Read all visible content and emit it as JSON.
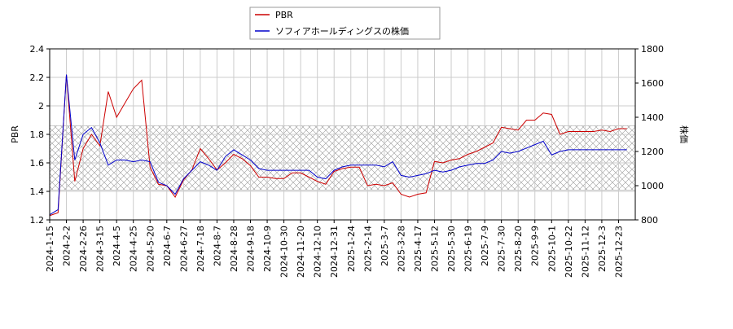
{
  "chart_data": {
    "type": "line",
    "categories": [
      "2024-1-15",
      null,
      "2024-2-2",
      null,
      "2024-2-26",
      null,
      "2024-3-15",
      null,
      "2024-4-5",
      null,
      "2024-4-25",
      null,
      "2024-5-20",
      null,
      "2024-6-7",
      null,
      "2024-6-27",
      null,
      "2024-7-18",
      null,
      "2024-8-7",
      null,
      "2024-8-28",
      null,
      "2024-9-18",
      null,
      "2024-10-9",
      null,
      "2024-10-30",
      null,
      "2024-11-20",
      null,
      "2024-12-10",
      null,
      "2024-12-31",
      null,
      "2025-1-24",
      null,
      "2025-2-14",
      null,
      "2025-3-7",
      null,
      "2025-3-28",
      null,
      "2025-4-17",
      null,
      "2025-5-12",
      null,
      "2025-5-30",
      null,
      "2025-6-19",
      null,
      "2025-7-9",
      null,
      "2025-7-30",
      null,
      "2025-8-20",
      null,
      "2025-9-9",
      null,
      "2025-10-1",
      null,
      "2025-10-22",
      null,
      "2025-11-12",
      null,
      "2025-12-3",
      null,
      "2025-12-23",
      null
    ],
    "ylabel": "PBR",
    "y2label": "株価",
    "ylim": [
      1.2,
      2.4
    ],
    "yticks": [
      1.2,
      1.4,
      1.6,
      1.8,
      2.0,
      2.2,
      2.4
    ],
    "y2lim": [
      800,
      1800
    ],
    "y2ticks": [
      800,
      1000,
      1200,
      1400,
      1600,
      1800
    ],
    "band": [
      1.41,
      1.86
    ],
    "grid": true,
    "series": [
      {
        "name": "PBR",
        "color": "#cc0000",
        "values": [
          1.23,
          1.25,
          2.22,
          1.47,
          1.7,
          1.8,
          1.72,
          2.1,
          1.92,
          2.02,
          2.12,
          2.18,
          1.57,
          1.45,
          1.44,
          1.36,
          1.48,
          1.55,
          1.7,
          1.63,
          1.55,
          1.6,
          1.66,
          1.63,
          1.58,
          1.5,
          1.5,
          1.49,
          1.49,
          1.53,
          1.53,
          1.5,
          1.47,
          1.45,
          1.54,
          1.56,
          1.57,
          1.57,
          1.44,
          1.45,
          1.44,
          1.46,
          1.38,
          1.36,
          1.38,
          1.39,
          1.61,
          1.6,
          1.62,
          1.63,
          1.66,
          1.68,
          1.71,
          1.74,
          1.85,
          1.84,
          1.83,
          1.9,
          1.9,
          1.95,
          1.94,
          1.8,
          1.82,
          1.82,
          1.82,
          1.82,
          1.83,
          1.82,
          1.84,
          1.84
        ]
      },
      {
        "name": "ソフィアホールディングスの株価",
        "color": "#0000cc",
        "axis": "y2",
        "values": [
          830,
          860,
          1650,
          1150,
          1300,
          1340,
          1250,
          1120,
          1150,
          1150,
          1140,
          1150,
          1140,
          1020,
          1000,
          950,
          1040,
          1090,
          1140,
          1120,
          1090,
          1170,
          1210,
          1180,
          1150,
          1100,
          1090,
          1090,
          1090,
          1090,
          1090,
          1090,
          1050,
          1040,
          1090,
          1110,
          1120,
          1120,
          1120,
          1120,
          1110,
          1140,
          1060,
          1050,
          1060,
          1070,
          1090,
          1080,
          1090,
          1110,
          1120,
          1130,
          1130,
          1150,
          1200,
          1190,
          1200,
          1220,
          1240,
          1260,
          1180,
          1200,
          1210,
          1210,
          1210,
          1210,
          1210,
          1210,
          1210,
          1210
        ]
      }
    ]
  }
}
